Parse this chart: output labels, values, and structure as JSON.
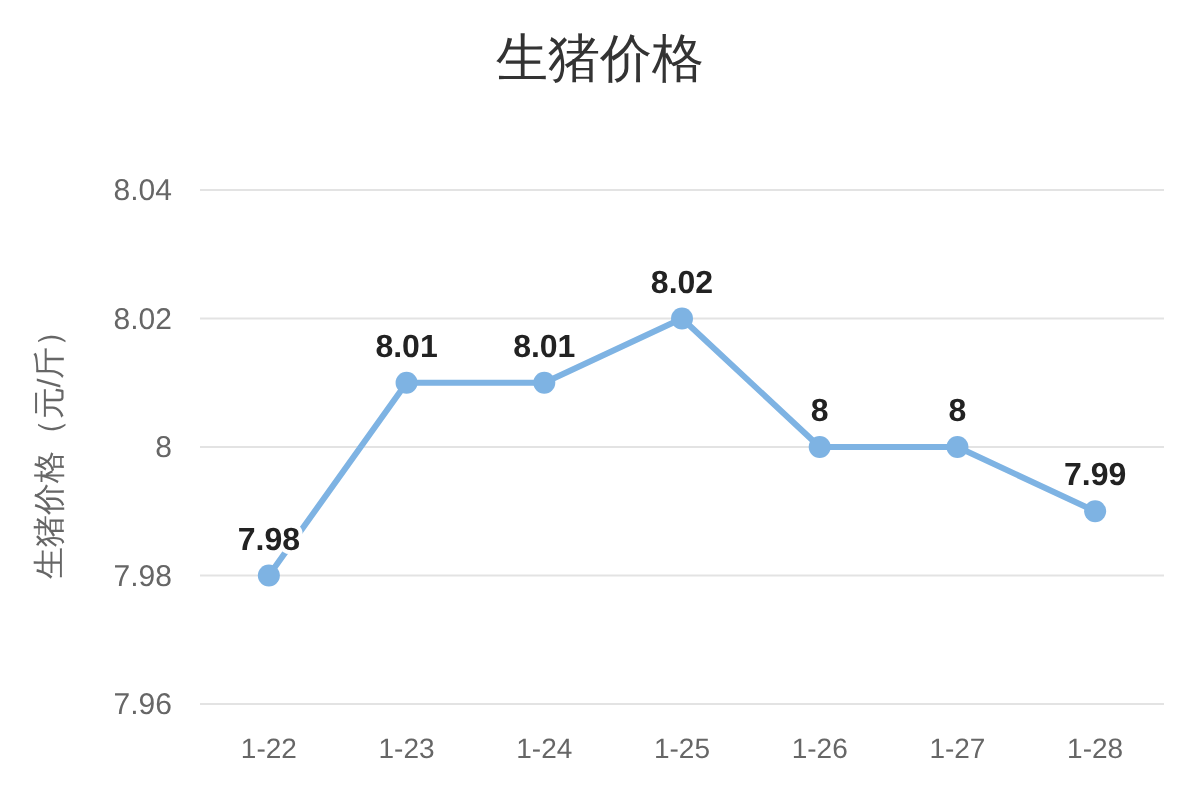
{
  "chart_data": {
    "type": "line",
    "title": "生猪价格",
    "ylabel": "生猪价格（元/斤）",
    "categories": [
      "1-22",
      "1-23",
      "1-24",
      "1-25",
      "1-26",
      "1-27",
      "1-28"
    ],
    "series": [
      {
        "color": "#7eb3e3",
        "values": [
          7.98,
          8.01,
          8.01,
          8.02,
          8,
          8,
          7.99
        ]
      }
    ],
    "ylim": [
      7.96,
      8.04
    ],
    "yticks": [
      7.96,
      7.98,
      8,
      8.02,
      8.04
    ],
    "grid": "y",
    "marker": "circle",
    "line_style": "solid",
    "data_labels": true
  }
}
